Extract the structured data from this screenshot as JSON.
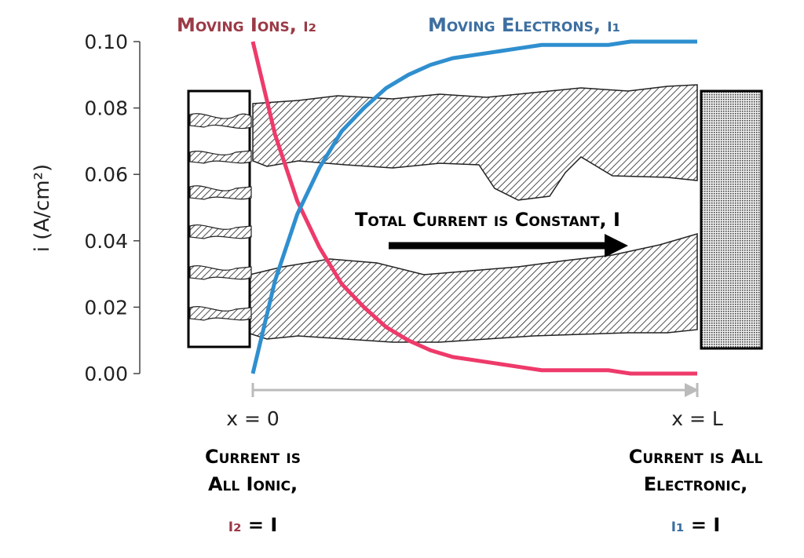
{
  "chart_data": {
    "type": "line",
    "y_label": "i  (A/cm²)",
    "x": [
      0,
      0.05,
      0.1,
      0.15,
      0.2,
      0.25,
      0.3,
      0.35,
      0.4,
      0.45,
      0.5,
      0.55,
      0.6,
      0.65,
      0.7,
      0.75,
      0.8,
      0.85,
      0.9,
      0.95,
      1
    ],
    "xlim": [
      0,
      1
    ],
    "xticks": [
      {
        "value": 0,
        "label": "x = 0"
      },
      {
        "value": 1,
        "label": "x = L"
      }
    ],
    "ylim": [
      0,
      0.1
    ],
    "yticks": [
      {
        "value": 0,
        "label": "0.00"
      },
      0.02,
      0.04,
      0.06,
      0.08,
      {
        "value": 0.1,
        "label": "0.10"
      }
    ],
    "series": [
      {
        "name": "Moving Ions, i₂",
        "color": "#ee3a6a",
        "label_color": "#9b3a46",
        "values": [
          0.1,
          0.072,
          0.052,
          0.038,
          0.027,
          0.02,
          0.014,
          0.01,
          0.007,
          0.005,
          0.004,
          0.003,
          0.002,
          0.001,
          0.001,
          0.001,
          0.001,
          0,
          0,
          0,
          0
        ]
      },
      {
        "name": "Moving Electrons, i₁",
        "color": "#2f8fcf",
        "label_color": "#3d6fa0",
        "values": [
          0,
          0.028,
          0.048,
          0.062,
          0.073,
          0.08,
          0.086,
          0.09,
          0.093,
          0.095,
          0.096,
          0.097,
          0.098,
          0.099,
          0.099,
          0.099,
          0.099,
          0.1,
          0.1,
          0.1,
          0.1
        ]
      }
    ],
    "annotation": "Total Current is Constant, I",
    "left_note": [
      "Current is",
      "All Ionic,"
    ],
    "left_equation": [
      "i₂",
      " = I"
    ],
    "right_note": [
      "Current is All",
      "Electronic,"
    ],
    "right_equation": [
      "i₁",
      " = I"
    ]
  }
}
